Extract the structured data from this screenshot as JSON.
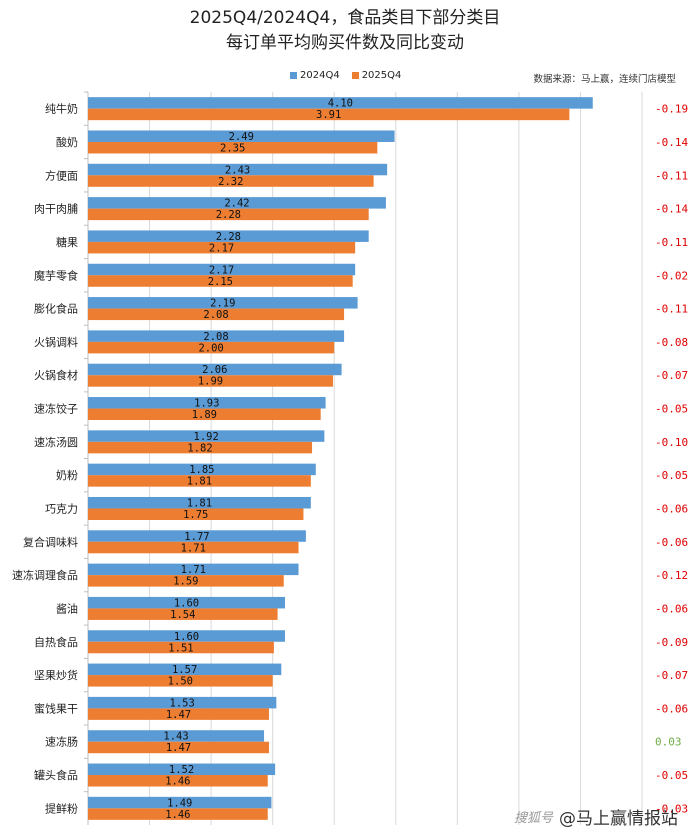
{
  "chart_data": {
    "type": "bar",
    "orientation": "horizontal",
    "title_lines": [
      "2025Q4/2024Q4，食品类目下部分类目",
      "每订单平均购买件数及同比变动"
    ],
    "source": "数据来源：马上赢，连续门店模型",
    "legend_position": "top",
    "categories": [
      "纯牛奶",
      "酸奶",
      "方便面",
      "肉干肉脯",
      "糖果",
      "魔芋零食",
      "膨化食品",
      "火锅调料",
      "火锅食材",
      "速冻饺子",
      "速冻汤圆",
      "奶粉",
      "巧克力",
      "复合调味料",
      "速冻调理食品",
      "酱油",
      "自热食品",
      "坚果炒货",
      "蜜饯果干",
      "速冻肠",
      "罐头食品",
      "提鲜粉"
    ],
    "series": [
      {
        "name": "2024Q4",
        "color": "#5b9bd5",
        "values": [
          4.1,
          2.49,
          2.43,
          2.42,
          2.28,
          2.17,
          2.19,
          2.08,
          2.06,
          1.93,
          1.92,
          1.85,
          1.81,
          1.77,
          1.71,
          1.6,
          1.6,
          1.57,
          1.53,
          1.43,
          1.52,
          1.49
        ],
        "labels": [
          "4.10",
          "2.49",
          "2.43",
          "2.42",
          "2.28",
          "2.17",
          "2.19",
          "2.08",
          "2.06",
          "1.93",
          "1.92",
          "1.85",
          "1.81",
          "1.77",
          "1.71",
          "1.60",
          "1.60",
          "1.57",
          "1.53",
          "1.43",
          "1.52",
          "1.49"
        ]
      },
      {
        "name": "2025Q4",
        "color": "#ed7d31",
        "values": [
          3.91,
          2.35,
          2.32,
          2.28,
          2.17,
          2.15,
          2.08,
          2.0,
          1.99,
          1.89,
          1.82,
          1.81,
          1.75,
          1.71,
          1.59,
          1.54,
          1.51,
          1.5,
          1.47,
          1.47,
          1.46,
          1.46
        ],
        "labels": [
          "3.91",
          "2.35",
          "2.32",
          "2.28",
          "2.17",
          "2.15",
          "2.08",
          "2.00",
          "1.99",
          "1.89",
          "1.82",
          "1.81",
          "1.75",
          "1.71",
          "1.59",
          "1.54",
          "1.51",
          "1.50",
          "1.47",
          "1.47",
          "1.46",
          "1.46"
        ]
      }
    ],
    "yoy_change": [
      -0.19,
      -0.14,
      -0.11,
      -0.14,
      -0.11,
      -0.02,
      -0.11,
      -0.08,
      -0.07,
      -0.05,
      -0.1,
      -0.05,
      -0.06,
      -0.06,
      -0.12,
      -0.06,
      -0.09,
      -0.07,
      -0.06,
      0.03,
      -0.05,
      -0.03
    ],
    "yoy_labels": [
      "-0.19",
      "-0.14",
      "-0.11",
      "-0.14",
      "-0.11",
      "-0.02",
      "-0.11",
      "-0.08",
      "-0.07",
      "-0.05",
      "-0.10",
      "-0.05",
      "-0.06",
      "-0.06",
      "-0.12",
      "-0.06",
      "-0.09",
      "-0.07",
      "-0.06",
      "0.03",
      "-0.05",
      "-0.03"
    ],
    "yoy_colors": {
      "negative": "#e00000",
      "positive": "#70ad47"
    },
    "xlim": [
      0,
      4.5
    ],
    "grid": true
  },
  "watermark": {
    "brand": "搜狐号",
    "account": "@马上赢情报站"
  }
}
